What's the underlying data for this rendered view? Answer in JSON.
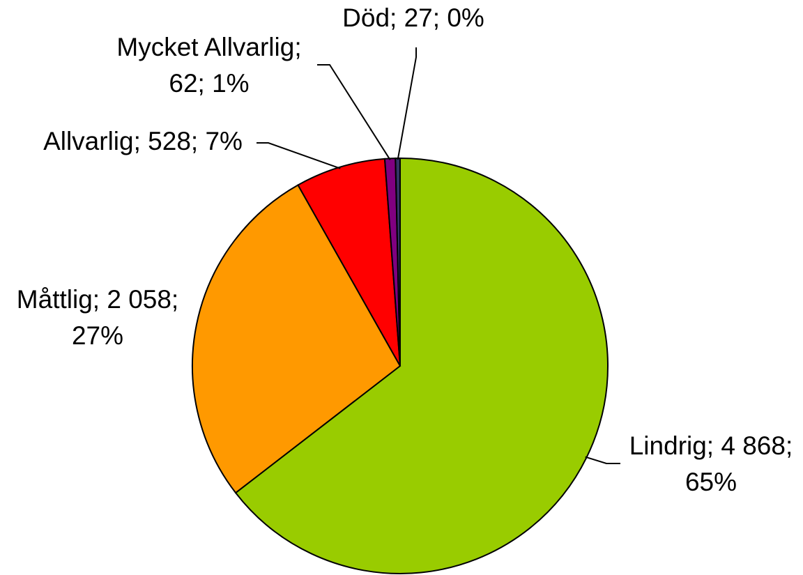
{
  "chart_data": {
    "type": "pie",
    "values": [
      4868,
      2058,
      528,
      62,
      27
    ],
    "value_labels": [
      [
        "Lindrig; 4 868;",
        "65%"
      ],
      [
        "Måttlig; 2 058;",
        "27%"
      ],
      [
        "Allvarlig; 528; 7%"
      ],
      [
        "Mycket Allvarlig;",
        "62; 1%"
      ],
      [
        "Död; 27; 0%"
      ]
    ],
    "colors": [
      "#99cc00",
      "#ff9900",
      "#ff0000",
      "#800080",
      "#333366"
    ]
  }
}
